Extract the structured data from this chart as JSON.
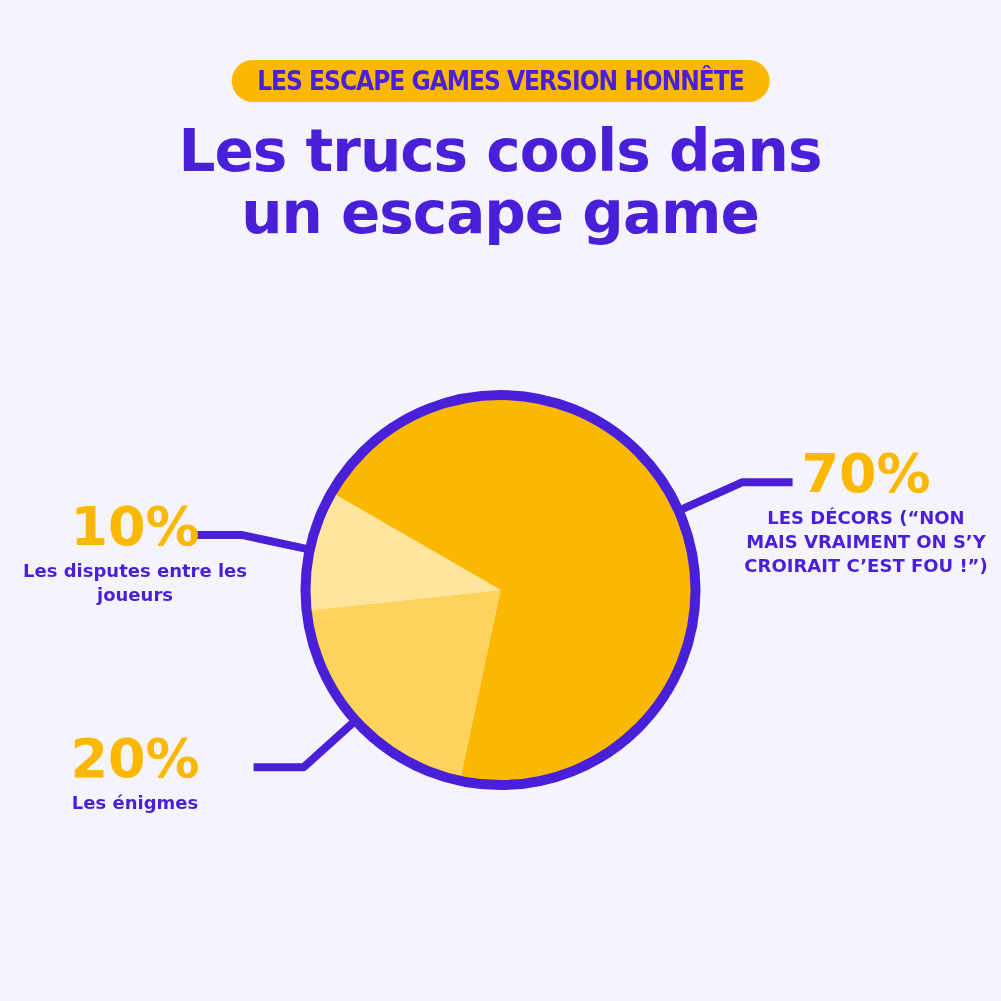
{
  "chart_data": {
    "type": "pie",
    "subtitle": "LES ESCAPE GAMES VERSION HONNÊTE",
    "title": "Les trucs cools dans un escape game",
    "categories": [
      "LES DÉCORS (“NON MAIS VRAIMENT ON S’Y CROIRAIT C’EST FOU !”)",
      "Les énigmes",
      "Les disputes entre les joueurs"
    ],
    "values": [
      70,
      20,
      10
    ],
    "value_labels": [
      "70%",
      "20%",
      "10%"
    ],
    "colors": [
      "#fbb800",
      "#fdd35c",
      "#fee59c"
    ],
    "legend": false
  }
}
